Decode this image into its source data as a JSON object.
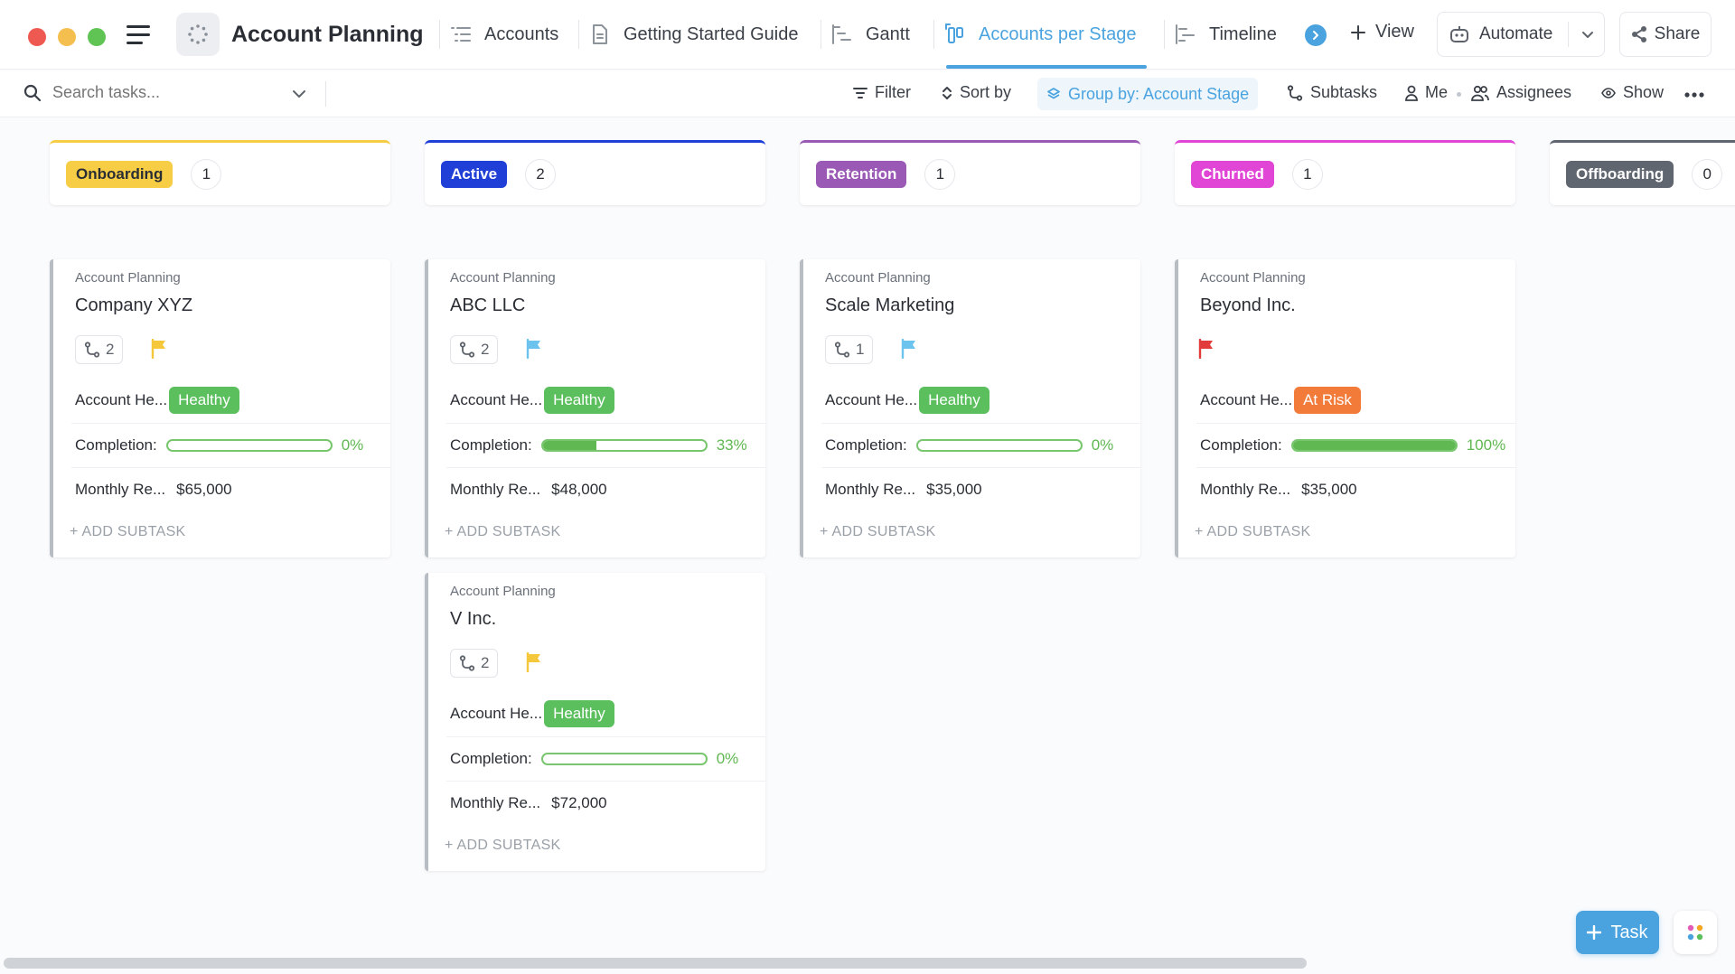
{
  "header": {
    "space_title": "Account Planning",
    "tabs": [
      {
        "label": "Accounts",
        "icon": "list-icon"
      },
      {
        "label": "Getting Started Guide",
        "icon": "doc-icon"
      },
      {
        "label": "Gantt",
        "icon": "gantt-icon"
      },
      {
        "label": "Accounts per Stage",
        "icon": "board-icon",
        "active": true
      },
      {
        "label": "Timeline",
        "icon": "timeline-icon"
      }
    ],
    "view_label": "View",
    "automate_label": "Automate",
    "share_label": "Share"
  },
  "toolbar": {
    "search_placeholder": "Search tasks...",
    "filter_label": "Filter",
    "sort_label": "Sort by",
    "group_label": "Group by: Account Stage",
    "subtasks_label": "Subtasks",
    "me_label": "Me",
    "assignees_label": "Assignees",
    "show_label": "Show"
  },
  "colors": {
    "accent": "#4aa3df",
    "healthy": "#5bbf5e",
    "at_risk": "#f27b3a",
    "progress": "#5fb851"
  },
  "columns": [
    {
      "name": "Onboarding",
      "count": "1",
      "badge_bg": "#f7cd45",
      "badge_fg": "#2a2e34",
      "border": "#f7cd45"
    },
    {
      "name": "Active",
      "count": "2",
      "badge_bg": "#1f3fd6",
      "badge_fg": "#ffffff",
      "border": "#1f3fd6"
    },
    {
      "name": "Retention",
      "count": "1",
      "badge_bg": "#9a59b5",
      "badge_fg": "#ffffff",
      "border": "#9a59b5"
    },
    {
      "name": "Churned",
      "count": "1",
      "badge_bg": "#e045d6",
      "badge_fg": "#ffffff",
      "border": "#e045d6"
    },
    {
      "name": "Offboarding",
      "count": "0",
      "badge_bg": "#60666f",
      "badge_fg": "#ffffff",
      "border": "#60666f"
    }
  ],
  "cards": [
    {
      "list": "Account Planning",
      "title": "Company XYZ",
      "subtasks": "2",
      "flag_color": "#f5c73b",
      "health_label": "Account He...",
      "health": "Healthy",
      "health_color": "#5bbf5e",
      "completion_label": "Completion:",
      "completion": 0,
      "completion_text": "0%",
      "revenue_label": "Monthly Re...",
      "revenue": "$65,000",
      "add_subtask": "+ ADD SUBTASK"
    },
    {
      "list": "Account Planning",
      "title": "ABC LLC",
      "subtasks": "2",
      "flag_color": "#6cc3ee",
      "health_label": "Account He...",
      "health": "Healthy",
      "health_color": "#5bbf5e",
      "completion_label": "Completion:",
      "completion": 33,
      "completion_text": "33%",
      "revenue_label": "Monthly Re...",
      "revenue": "$48,000",
      "add_subtask": "+ ADD SUBTASK"
    },
    {
      "list": "Account Planning",
      "title": "Scale Marketing",
      "subtasks": "1",
      "flag_color": "#6cc3ee",
      "health_label": "Account He...",
      "health": "Healthy",
      "health_color": "#5bbf5e",
      "completion_label": "Completion:",
      "completion": 0,
      "completion_text": "0%",
      "revenue_label": "Monthly Re...",
      "revenue": "$35,000",
      "add_subtask": "+ ADD SUBTASK"
    },
    {
      "list": "Account Planning",
      "title": "Beyond Inc.",
      "subtasks": "",
      "flag_color": "#e23b3b",
      "health_label": "Account He...",
      "health": "At Risk",
      "health_color": "#f27b3a",
      "completion_label": "Completion:",
      "completion": 100,
      "completion_text": "100%",
      "revenue_label": "Monthly Re...",
      "revenue": "$35,000",
      "add_subtask": "+ ADD SUBTASK"
    },
    {
      "list": "Account Planning",
      "title": "V Inc.",
      "subtasks": "2",
      "flag_color": "#f5c73b",
      "health_label": "Account He...",
      "health": "Healthy",
      "health_color": "#5bbf5e",
      "completion_label": "Completion:",
      "completion": 0,
      "completion_text": "0%",
      "revenue_label": "Monthly Re...",
      "revenue": "$72,000",
      "add_subtask": "+ ADD SUBTASK"
    }
  ],
  "fab": {
    "task_label": "Task"
  }
}
